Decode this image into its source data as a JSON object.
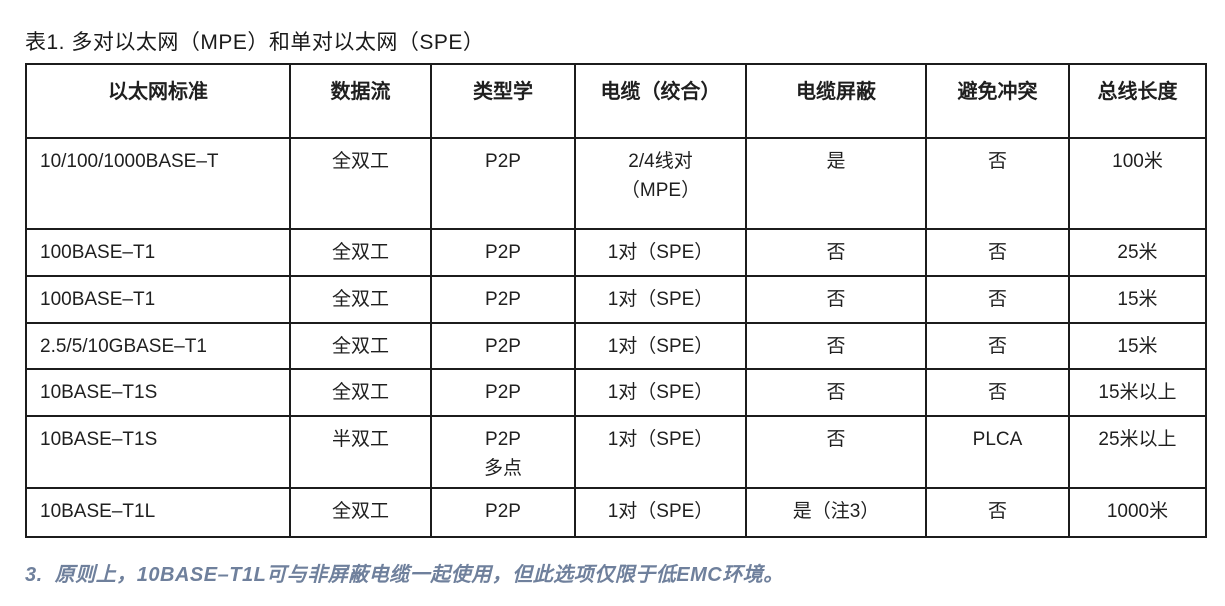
{
  "title": "表1. 多对以太网（MPE）和单对以太网（SPE）",
  "table": {
    "headers": [
      "以太网标准",
      "数据流",
      "类型学",
      "电缆（绞合）",
      "电缆屏蔽",
      "避免冲突",
      "总线长度"
    ],
    "rows": [
      [
        "10/100/1000BASE–T",
        "全双工",
        "P2P",
        "2/4线对\n（MPE）",
        "是",
        "否",
        "100米"
      ],
      [
        "100BASE–T1",
        "全双工",
        "P2P",
        "1对（SPE）",
        "否",
        "否",
        "25米"
      ],
      [
        "100BASE–T1",
        "全双工",
        "P2P",
        "1对（SPE）",
        "否",
        "否",
        "15米"
      ],
      [
        "2.5/5/10GBASE–T1",
        "全双工",
        "P2P",
        "1对（SPE）",
        "否",
        "否",
        "15米"
      ],
      [
        "10BASE–T1S",
        "全双工",
        "P2P",
        "1对（SPE）",
        "否",
        "否",
        "15米以上"
      ],
      [
        "10BASE–T1S",
        "半双工",
        "P2P\n多点",
        "1对（SPE）",
        "否",
        "PLCA",
        "25米以上"
      ],
      [
        "10BASE–T1L",
        "全双工",
        "P2P",
        "1对（SPE）",
        "是（注3）",
        "否",
        "1000米"
      ]
    ]
  },
  "footnote": {
    "text": "3.  原则上，10BASE–T1L可与非屏蔽电缆一起使用，但此选项仅限于低EMC环境。",
    "color": "#6f809c"
  },
  "colors": {
    "border": "#1c1c1c",
    "text": "#1f1f1f",
    "background": "#ffffff"
  }
}
